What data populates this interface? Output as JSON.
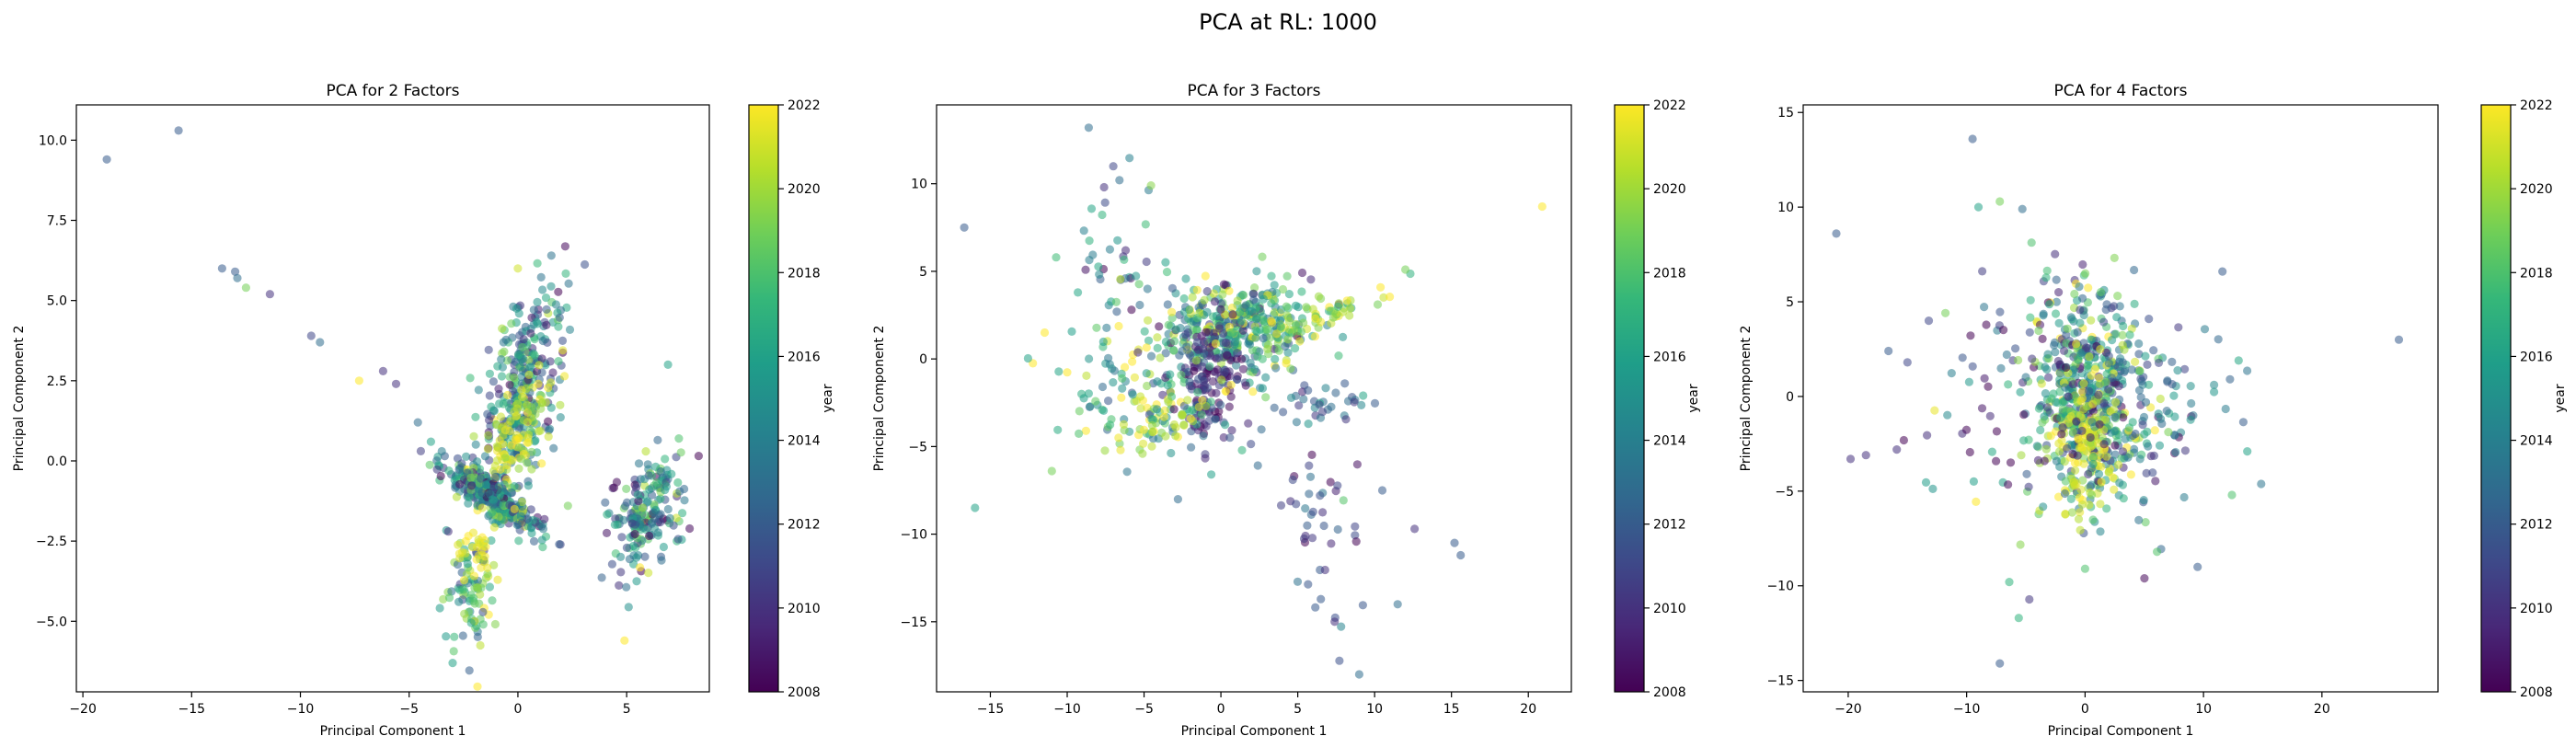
{
  "figure": {
    "suptitle": "PCA at RL: 1000"
  },
  "chart_data": [
    {
      "type": "scatter",
      "title": "PCA for 2 Factors",
      "xlabel": "Principal Component 1",
      "ylabel": "Principal Component 2",
      "xlim": [
        -20.3,
        8.8
      ],
      "ylim": [
        -7.2,
        11.1
      ],
      "xticks": [
        -20,
        -15,
        -10,
        -5,
        0,
        5
      ],
      "xtick_labels": [
        "−20",
        "−15",
        "−10",
        "−5",
        "0",
        "5"
      ],
      "yticks": [
        -5.0,
        -2.5,
        0.0,
        2.5,
        5.0,
        7.5,
        10.0
      ],
      "ytick_labels": [
        "−5.0",
        "−2.5",
        "0.0",
        "2.5",
        "5.0",
        "7.5",
        "10.0"
      ],
      "colorbar": {
        "label": "year",
        "min": 2008,
        "max": 2022,
        "ticks": [
          "2008",
          "2010",
          "2012",
          "2014",
          "2016",
          "2018",
          "2020",
          "2022"
        ]
      },
      "colormap": [
        "#440154",
        "#482878",
        "#3e4989",
        "#31688e",
        "#26828e",
        "#1f9e89",
        "#35b779",
        "#6ece58",
        "#b5de2b",
        "#fde725"
      ],
      "grid": false,
      "clusters": [
        {
          "cx": 0.2,
          "cy": 2.2,
          "sx": 0.9,
          "sy": 1.7,
          "rho": 0.55,
          "n": 320,
          "ymean": 2014.5,
          "ysd": 3.5
        },
        {
          "cx": 0.1,
          "cy": 0.7,
          "sx": 0.8,
          "sy": 1.0,
          "rho": 0.5,
          "n": 90,
          "ymean": 2021,
          "ysd": 1.0
        },
        {
          "cx": -1.2,
          "cy": -1.1,
          "sx": 1.1,
          "sy": 0.55,
          "rho": -0.85,
          "n": 300,
          "ymean": 2014,
          "ysd": 3.5
        },
        {
          "cx": -2.2,
          "cy": -4.0,
          "sx": 0.6,
          "sy": 1.1,
          "rho": 0.2,
          "n": 90,
          "ymean": 2017,
          "ysd": 3.0
        },
        {
          "cx": -1.9,
          "cy": -2.7,
          "sx": 0.5,
          "sy": 0.6,
          "rho": 0.0,
          "n": 30,
          "ymean": 2021.5,
          "ysd": 0.6
        },
        {
          "cx": 5.8,
          "cy": -1.7,
          "sx": 0.8,
          "sy": 0.9,
          "rho": 0.3,
          "n": 190,
          "ymean": 2014,
          "ysd": 3.5
        }
      ],
      "points": [
        {
          "x": -18.9,
          "y": 9.4,
          "year": 2012
        },
        {
          "x": -15.6,
          "y": 10.3,
          "year": 2012
        },
        {
          "x": -13.6,
          "y": 6.0,
          "year": 2012
        },
        {
          "x": -13.0,
          "y": 5.9,
          "year": 2012
        },
        {
          "x": -12.9,
          "y": 5.7,
          "year": 2013
        },
        {
          "x": -12.5,
          "y": 5.4,
          "year": 2019
        },
        {
          "x": -11.4,
          "y": 5.2,
          "year": 2010
        },
        {
          "x": -9.5,
          "y": 3.9,
          "year": 2011
        },
        {
          "x": -9.1,
          "y": 3.7,
          "year": 2013
        },
        {
          "x": -7.3,
          "y": 2.5,
          "year": 2022
        },
        {
          "x": -6.2,
          "y": 2.8,
          "year": 2010
        },
        {
          "x": -5.6,
          "y": 2.4,
          "year": 2010
        },
        {
          "x": -4.6,
          "y": 1.2,
          "year": 2013
        },
        {
          "x": -4.0,
          "y": 0.6,
          "year": 2016
        },
        {
          "x": -3.5,
          "y": 0.3,
          "year": 2014
        },
        {
          "x": 6.9,
          "y": 3.0,
          "year": 2016
        },
        {
          "x": 7.4,
          "y": 0.7,
          "year": 2018
        },
        {
          "x": 4.9,
          "y": -5.6,
          "year": 2022
        },
        {
          "x": 6.6,
          "y": -3.1,
          "year": 2013
        },
        {
          "x": 0.0,
          "y": 6.0,
          "year": 2021
        },
        {
          "x": -3.0,
          "y": -6.3,
          "year": 2016
        },
        {
          "x": -3.2,
          "y": -2.2,
          "year": 2010
        },
        {
          "x": 1.9,
          "y": -2.6,
          "year": 2012
        },
        {
          "x": 2.3,
          "y": -1.4,
          "year": 2019
        }
      ]
    },
    {
      "type": "scatter",
      "title": "PCA for 3 Factors",
      "xlabel": "Principal Component 1",
      "ylabel": "Principal Component 2",
      "xlim": [
        -18.5,
        22.8
      ],
      "ylim": [
        -19.0,
        14.5
      ],
      "xticks": [
        -15,
        -10,
        -5,
        0,
        5,
        10,
        15,
        20
      ],
      "xtick_labels": [
        "−15",
        "−10",
        "−5",
        "0",
        "5",
        "10",
        "15",
        "20"
      ],
      "yticks": [
        -15,
        -10,
        -5,
        0,
        5,
        10
      ],
      "ytick_labels": [
        "−15",
        "−10",
        "−5",
        "0",
        "5",
        "10"
      ],
      "colorbar": {
        "label": "year",
        "min": 2008,
        "max": 2022,
        "ticks": [
          "2008",
          "2010",
          "2012",
          "2014",
          "2016",
          "2018",
          "2020",
          "2022"
        ]
      },
      "colormap": [
        "#440154",
        "#482878",
        "#3e4989",
        "#31688e",
        "#26828e",
        "#1f9e89",
        "#35b779",
        "#6ece58",
        "#b5de2b",
        "#fde725"
      ],
      "grid": false,
      "clusters": [
        {
          "cx": 1.0,
          "cy": 1.8,
          "sx": 2.6,
          "sy": 1.3,
          "rho": 0.1,
          "n": 380,
          "ymean": 2016,
          "ysd": 4.0
        },
        {
          "cx": -0.6,
          "cy": -1.6,
          "sx": 1.0,
          "sy": 1.6,
          "rho": 0.2,
          "n": 140,
          "ymean": 2010,
          "ysd": 1.8
        },
        {
          "cx": -5.0,
          "cy": -2.0,
          "sx": 2.8,
          "sy": 1.8,
          "rho": -0.3,
          "n": 140,
          "ymean": 2017,
          "ysd": 3.5
        },
        {
          "cx": -6.5,
          "cy": 5.5,
          "sx": 1.6,
          "sy": 2.4,
          "rho": 0.0,
          "n": 40,
          "ymean": 2015,
          "ysd": 3.5
        },
        {
          "cx": 6.5,
          "cy": 2.5,
          "sx": 2.5,
          "sy": 0.9,
          "rho": 0.9,
          "n": 50,
          "ymean": 2020,
          "ysd": 2.0
        },
        {
          "cx": 6.5,
          "cy": -9.0,
          "sx": 1.3,
          "sy": 3.0,
          "rho": -0.4,
          "n": 45,
          "ymean": 2011,
          "ysd": 2.0
        },
        {
          "cx": 7.0,
          "cy": -2.5,
          "sx": 1.6,
          "sy": 0.5,
          "rho": 0.0,
          "n": 30,
          "ymean": 2012,
          "ysd": 2.0
        },
        {
          "cx": -4.5,
          "cy": -4.0,
          "sx": 1.8,
          "sy": 0.8,
          "rho": 0.6,
          "n": 30,
          "ymean": 2021,
          "ysd": 1.0
        }
      ],
      "points": [
        {
          "x": -16.7,
          "y": 7.5,
          "year": 2012
        },
        {
          "x": -16.0,
          "y": -8.5,
          "year": 2016
        },
        {
          "x": -8.6,
          "y": 13.2,
          "year": 2013
        },
        {
          "x": -7.0,
          "y": 11.0,
          "year": 2011
        },
        {
          "x": -6.6,
          "y": 10.2,
          "year": 2013
        },
        {
          "x": -7.6,
          "y": 9.8,
          "year": 2010
        },
        {
          "x": 20.9,
          "y": 8.7,
          "year": 2022
        },
        {
          "x": 15.2,
          "y": -10.5,
          "year": 2012
        },
        {
          "x": 15.6,
          "y": -11.2,
          "year": 2012
        },
        {
          "x": 12.6,
          "y": -9.7,
          "year": 2010
        },
        {
          "x": 11.5,
          "y": -14.0,
          "year": 2013
        },
        {
          "x": 9.0,
          "y": -18.0,
          "year": 2013
        },
        {
          "x": 7.4,
          "y": -15.0,
          "year": 2010
        },
        {
          "x": 12.0,
          "y": 5.1,
          "year": 2019
        },
        {
          "x": 10.5,
          "y": -7.5,
          "year": 2012
        },
        {
          "x": -11.0,
          "y": -6.4,
          "year": 2019
        }
      ]
    },
    {
      "type": "scatter",
      "title": "PCA for 4 Factors",
      "xlabel": "Principal Component 1",
      "ylabel": "Principal Component 2",
      "xlim": [
        -23.8,
        29.8
      ],
      "ylim": [
        -15.6,
        15.4
      ],
      "xticks": [
        -20,
        -10,
        0,
        10,
        20
      ],
      "xtick_labels": [
        "−20",
        "−10",
        "0",
        "10",
        "20"
      ],
      "yticks": [
        -15,
        -10,
        -5,
        0,
        5,
        10,
        15
      ],
      "ytick_labels": [
        "−15",
        "−10",
        "−5",
        "0",
        "5",
        "10",
        "15"
      ],
      "colorbar": {
        "label": "year",
        "min": 2008,
        "max": 2022,
        "ticks": [
          "2008",
          "2010",
          "2012",
          "2014",
          "2016",
          "2018",
          "2020",
          "2022"
        ]
      },
      "colormap": [
        "#440154",
        "#482878",
        "#3e4989",
        "#31688e",
        "#26828e",
        "#1f9e89",
        "#35b779",
        "#6ece58",
        "#b5de2b",
        "#fde725"
      ],
      "grid": false,
      "clusters": [
        {
          "cx": 0.3,
          "cy": 0.3,
          "sx": 2.6,
          "sy": 3.0,
          "rho": -0.2,
          "n": 520,
          "ymean": 2015,
          "ysd": 4.0
        },
        {
          "cx": 0.3,
          "cy": -2.5,
          "sx": 1.3,
          "sy": 1.8,
          "rho": 0.2,
          "n": 120,
          "ymean": 2021,
          "ysd": 1.0
        },
        {
          "cx": -5.0,
          "cy": 0.0,
          "sx": 4.5,
          "sy": 3.0,
          "rho": -0.2,
          "n": 90,
          "ymean": 2013,
          "ysd": 4.0
        },
        {
          "cx": 6.0,
          "cy": -1.0,
          "sx": 3.5,
          "sy": 2.5,
          "rho": 0.2,
          "n": 70,
          "ymean": 2013,
          "ysd": 3.5
        }
      ],
      "points": [
        {
          "x": -21.0,
          "y": 8.6,
          "year": 2012
        },
        {
          "x": -9.5,
          "y": 13.6,
          "year": 2012
        },
        {
          "x": 26.5,
          "y": 3.0,
          "year": 2012
        },
        {
          "x": -7.2,
          "y": -14.1,
          "year": 2012
        },
        {
          "x": -19.8,
          "y": -3.3,
          "year": 2010
        },
        {
          "x": -18.5,
          "y": -3.1,
          "year": 2010
        },
        {
          "x": -16.6,
          "y": 2.4,
          "year": 2012
        },
        {
          "x": -15.9,
          "y": -2.8,
          "year": 2010
        },
        {
          "x": -15.0,
          "y": 1.8,
          "year": 2011
        },
        {
          "x": -13.2,
          "y": 4.0,
          "year": 2011
        },
        {
          "x": -7.2,
          "y": 10.3,
          "year": 2019
        },
        {
          "x": -9.0,
          "y": 10.0,
          "year": 2016
        },
        {
          "x": -5.3,
          "y": 9.9,
          "year": 2013
        },
        {
          "x": 11.6,
          "y": 6.6,
          "year": 2012
        },
        {
          "x": 13.7,
          "y": -2.9,
          "year": 2016
        },
        {
          "x": 12.4,
          "y": -5.2,
          "year": 2018
        },
        {
          "x": 9.5,
          "y": -9.0,
          "year": 2012
        },
        {
          "x": 0.0,
          "y": -9.1,
          "year": 2018
        },
        {
          "x": -6.4,
          "y": -9.8,
          "year": 2017
        },
        {
          "x": -5.6,
          "y": -11.7,
          "year": 2017
        }
      ]
    }
  ]
}
